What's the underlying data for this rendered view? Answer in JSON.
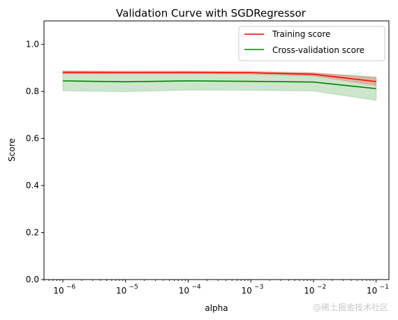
{
  "chart_data": {
    "type": "line",
    "title": "Validation Curve with SGDRegressor",
    "xlabel": "alpha",
    "ylabel": "Score",
    "xscale": "log",
    "xlim": [
      5e-07,
      0.16
    ],
    "ylim": [
      0,
      1.1
    ],
    "x": [
      1e-06,
      1e-05,
      0.0001,
      0.001,
      0.01,
      0.1
    ],
    "xtick_exponents": [
      "−6",
      "−5",
      "−4",
      "−3",
      "−2",
      "−1"
    ],
    "xtick_base": "10",
    "yticks": [
      "0.0",
      "0.2",
      "0.4",
      "0.6",
      "0.8",
      "1.0"
    ],
    "ytick_values": [
      0.0,
      0.2,
      0.4,
      0.6,
      0.8,
      1.0
    ],
    "legend_position": "top-right",
    "grid": false,
    "series": [
      {
        "name": "Training score",
        "color": "#ff0000",
        "band_color": "#ff0000",
        "values": [
          0.881,
          0.881,
          0.881,
          0.88,
          0.873,
          0.842
        ],
        "lower": [
          0.875,
          0.875,
          0.875,
          0.874,
          0.866,
          0.826
        ],
        "upper": [
          0.887,
          0.887,
          0.887,
          0.886,
          0.88,
          0.858
        ]
      },
      {
        "name": "Cross-validation score",
        "color": "#008000",
        "band_color": "#008000",
        "values": [
          0.845,
          0.841,
          0.845,
          0.843,
          0.84,
          0.812
        ],
        "lower": [
          0.803,
          0.799,
          0.806,
          0.805,
          0.802,
          0.762
        ],
        "upper": [
          0.887,
          0.883,
          0.884,
          0.881,
          0.878,
          0.862
        ]
      }
    ]
  },
  "watermark": "@稀土掘金技术社区"
}
